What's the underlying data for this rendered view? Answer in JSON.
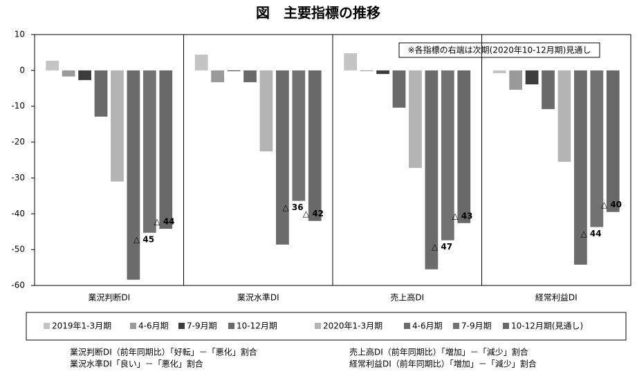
{
  "chart_data": {
    "type": "bar",
    "title": "図　主要指標の推移",
    "annotation": "※各指標の右端は次期(2020年10-12月期)見通し",
    "categories": [
      "業況判断DI",
      "業況水準DI",
      "売上高DI",
      "経常利益DI"
    ],
    "series": [
      {
        "name": "2019年1-3月期",
        "color": "#c4c4c4",
        "values": [
          2.7,
          4.4,
          4.8,
          -0.8
        ]
      },
      {
        "name": "4-6月期",
        "color": "#9a9a9a",
        "values": [
          -1.7,
          -3.3,
          -0.2,
          -5.4
        ]
      },
      {
        "name": "7-9月期",
        "color": "#3c3c3c",
        "values": [
          -2.7,
          -0.2,
          -1.0,
          -3.9
        ]
      },
      {
        "name": "10-12月期",
        "color": "#6a6a6a",
        "values": [
          -12.9,
          -3.3,
          -10.4,
          -10.8
        ]
      },
      {
        "name": "2020年1-3月期",
        "color": "#b4b4b4",
        "values": [
          -31.0,
          -22.6,
          -27.2,
          -25.5
        ]
      },
      {
        "name": "4-6月期",
        "color": "#6c6c6c",
        "values": [
          -58.4,
          -48.6,
          -55.5,
          -54.2
        ]
      },
      {
        "name": "7-9月期",
        "color": "#727272",
        "values": [
          -45.3,
          -36.4,
          -47.4,
          -43.7
        ],
        "value_labels": [
          "△ 45",
          "△ 36",
          "△ 47",
          "△ 44"
        ]
      },
      {
        "name": "10-12月期(見通し)",
        "color": "#686868",
        "values": [
          -44.2,
          -42.0,
          -42.6,
          -39.5
        ],
        "value_labels": [
          "△ 44",
          "△ 42",
          "△ 43",
          "△ 40"
        ]
      }
    ],
    "ylim": [
      -60,
      10
    ],
    "yticks": [
      -60,
      -50,
      -40,
      -30,
      -20,
      -10,
      0,
      10
    ],
    "grid": false,
    "notes": [
      "業況判断DI（前年同期比）「好転」－「悪化」割合",
      "業況水準DI「良い」－「悪化」割合",
      "売上高DI（前年同期比）「増加」－「減少」割合",
      "経常利益DI（前年同期比）「増加」－「減少」割合"
    ]
  }
}
